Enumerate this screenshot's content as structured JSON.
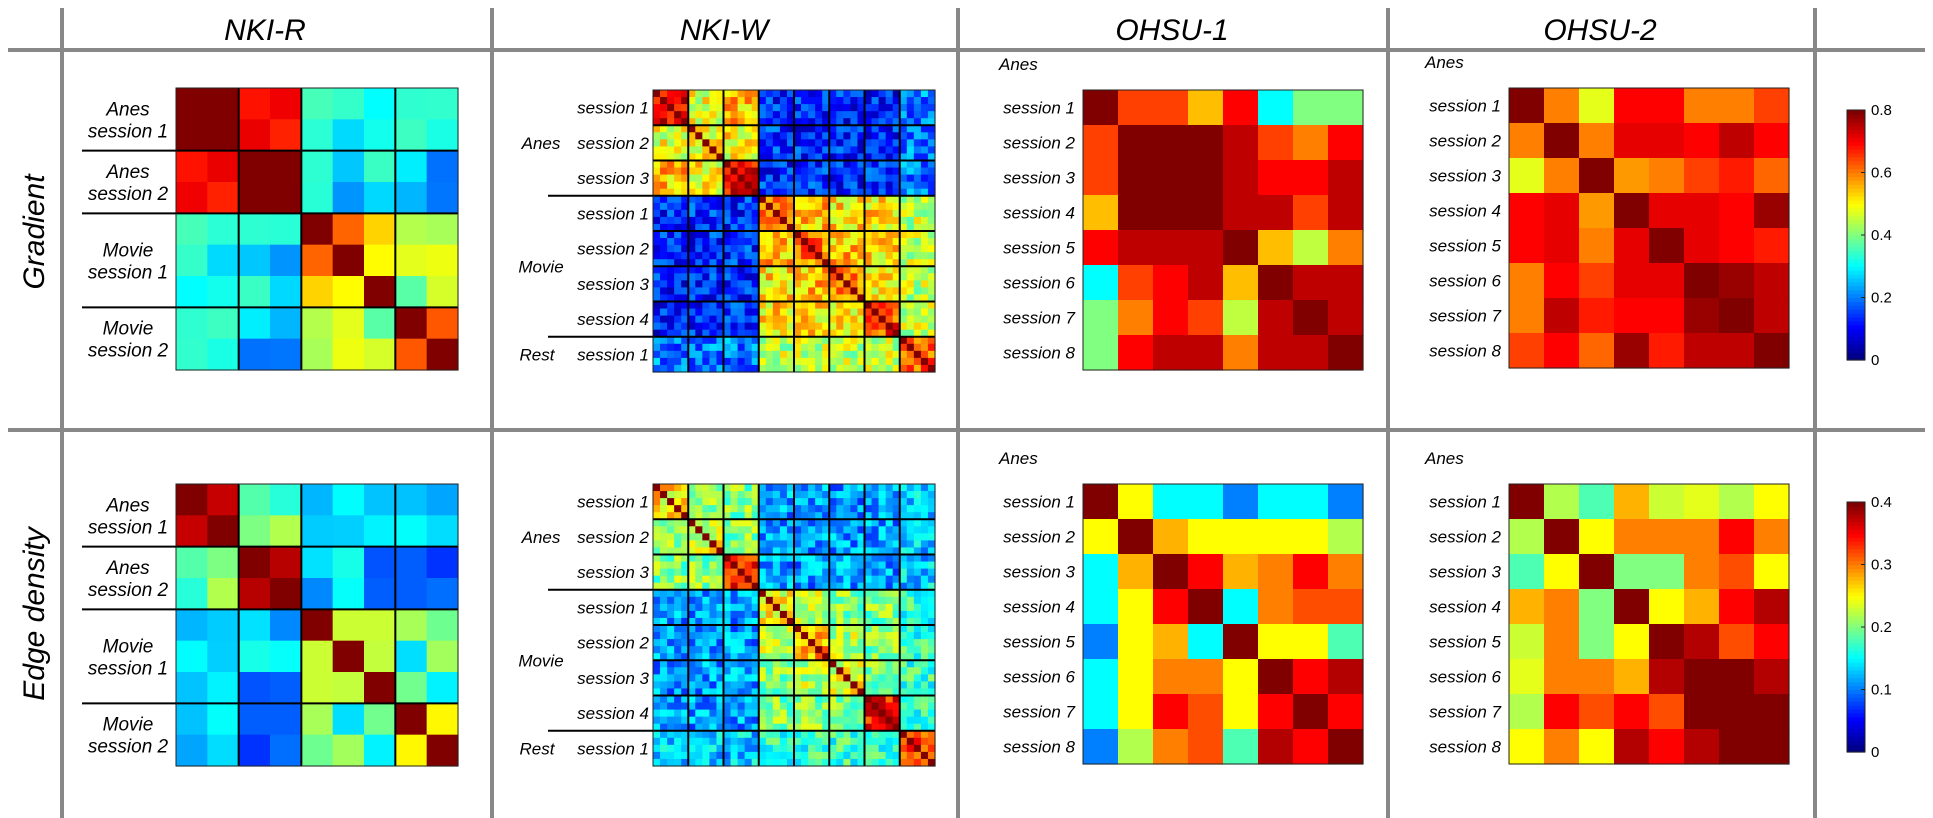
{
  "columns": [
    "NKI-R",
    "NKI-W",
    "OHSU-1",
    "OHSU-2"
  ],
  "rows": [
    "Gradient",
    "Edge density"
  ],
  "group_labels": {
    "anes": "Anes",
    "movie": "Movie",
    "rest": "Rest"
  },
  "nkir_labels": [
    [
      "Anes",
      "session 1"
    ],
    [
      "Anes",
      "session 2"
    ],
    [
      "Movie",
      "session 1"
    ],
    [
      "Movie",
      "session 2"
    ]
  ],
  "nkiw_session_labels": [
    "session 1",
    "session 2",
    "session 3",
    "session 1",
    "session 2",
    "session 3",
    "session 4",
    "session 1"
  ],
  "ohsu_session_labels": [
    "session 1",
    "session 2",
    "session 3",
    "session 4",
    "session 5",
    "session 6",
    "session 7",
    "session 8"
  ],
  "colormap": "jet",
  "chart_data": [
    {
      "type": "heatmap",
      "row": "Gradient",
      "column": "NKI-R",
      "groups": [
        2,
        2,
        3,
        2
      ],
      "block_means": [
        [
          0.8,
          0.63,
          0.28,
          0.28
        ],
        [
          0.63,
          0.72,
          0.27,
          0.26
        ],
        [
          0.28,
          0.27,
          0.55,
          0.42
        ],
        [
          0.28,
          0.26,
          0.42,
          0.58
        ]
      ]
    },
    {
      "type": "heatmap",
      "row": "Gradient",
      "column": "NKI-W",
      "groups": [
        5,
        5,
        5,
        5,
        5,
        5,
        5,
        5
      ],
      "block_means": [
        [
          0.7,
          0.48,
          0.55,
          0.12,
          0.12,
          0.12,
          0.12,
          0.2
        ],
        [
          0.48,
          0.5,
          0.5,
          0.13,
          0.13,
          0.13,
          0.13,
          0.2
        ],
        [
          0.55,
          0.5,
          0.72,
          0.13,
          0.13,
          0.13,
          0.13,
          0.2
        ],
        [
          0.12,
          0.13,
          0.13,
          0.58,
          0.55,
          0.52,
          0.52,
          0.45
        ],
        [
          0.12,
          0.13,
          0.13,
          0.55,
          0.6,
          0.55,
          0.52,
          0.45
        ],
        [
          0.12,
          0.13,
          0.13,
          0.52,
          0.55,
          0.58,
          0.52,
          0.45
        ],
        [
          0.12,
          0.13,
          0.13,
          0.52,
          0.52,
          0.52,
          0.65,
          0.45
        ],
        [
          0.2,
          0.2,
          0.2,
          0.45,
          0.45,
          0.45,
          0.45,
          0.62
        ]
      ]
    },
    {
      "type": "heatmap",
      "row": "Gradient",
      "column": "OHSU-1",
      "values": [
        [
          0.8,
          0.65,
          0.65,
          0.55,
          0.7,
          0.3,
          0.4,
          0.4
        ],
        [
          0.65,
          0.8,
          0.8,
          0.8,
          0.75,
          0.65,
          0.6,
          0.7
        ],
        [
          0.65,
          0.8,
          0.8,
          0.8,
          0.75,
          0.7,
          0.7,
          0.75
        ],
        [
          0.55,
          0.8,
          0.8,
          0.8,
          0.75,
          0.75,
          0.65,
          0.75
        ],
        [
          0.7,
          0.75,
          0.75,
          0.75,
          0.8,
          0.55,
          0.45,
          0.6
        ],
        [
          0.3,
          0.65,
          0.7,
          0.75,
          0.55,
          0.8,
          0.75,
          0.75
        ],
        [
          0.4,
          0.6,
          0.7,
          0.65,
          0.45,
          0.75,
          0.8,
          0.75
        ],
        [
          0.4,
          0.7,
          0.75,
          0.75,
          0.6,
          0.75,
          0.75,
          0.8
        ]
      ]
    },
    {
      "type": "heatmap",
      "row": "Gradient",
      "column": "OHSU-2",
      "values": [
        [
          0.8,
          0.6,
          0.48,
          0.7,
          0.7,
          0.6,
          0.6,
          0.65
        ],
        [
          0.6,
          0.8,
          0.6,
          0.72,
          0.72,
          0.7,
          0.75,
          0.7
        ],
        [
          0.48,
          0.6,
          0.8,
          0.58,
          0.6,
          0.65,
          0.68,
          0.62
        ],
        [
          0.7,
          0.72,
          0.58,
          0.8,
          0.72,
          0.72,
          0.7,
          0.78
        ],
        [
          0.7,
          0.72,
          0.6,
          0.72,
          0.8,
          0.72,
          0.7,
          0.68
        ],
        [
          0.6,
          0.7,
          0.65,
          0.72,
          0.72,
          0.8,
          0.78,
          0.75
        ],
        [
          0.6,
          0.75,
          0.68,
          0.7,
          0.7,
          0.78,
          0.8,
          0.75
        ],
        [
          0.65,
          0.7,
          0.62,
          0.78,
          0.68,
          0.75,
          0.75,
          0.8
        ]
      ]
    },
    {
      "type": "heatmap",
      "row": "Edge density",
      "column": "NKI-R",
      "groups": [
        2,
        2,
        3,
        2
      ],
      "block_means": [
        [
          0.36,
          0.2,
          0.12,
          0.11
        ],
        [
          0.2,
          0.34,
          0.12,
          0.11
        ],
        [
          0.12,
          0.12,
          0.24,
          0.18
        ],
        [
          0.11,
          0.11,
          0.18,
          0.22
        ]
      ]
    },
    {
      "type": "heatmap",
      "row": "Edge density",
      "column": "NKI-W",
      "groups": [
        5,
        5,
        5,
        5,
        5,
        5,
        5,
        5
      ],
      "block_means": [
        [
          0.26,
          0.2,
          0.2,
          0.11,
          0.11,
          0.11,
          0.11,
          0.13
        ],
        [
          0.2,
          0.24,
          0.2,
          0.11,
          0.11,
          0.11,
          0.11,
          0.13
        ],
        [
          0.2,
          0.2,
          0.34,
          0.11,
          0.11,
          0.11,
          0.11,
          0.13
        ],
        [
          0.11,
          0.11,
          0.11,
          0.25,
          0.23,
          0.2,
          0.2,
          0.17
        ],
        [
          0.11,
          0.11,
          0.11,
          0.23,
          0.28,
          0.22,
          0.2,
          0.17
        ],
        [
          0.11,
          0.11,
          0.11,
          0.2,
          0.22,
          0.24,
          0.2,
          0.17
        ],
        [
          0.11,
          0.11,
          0.11,
          0.2,
          0.2,
          0.2,
          0.34,
          0.17
        ],
        [
          0.13,
          0.13,
          0.13,
          0.17,
          0.17,
          0.17,
          0.17,
          0.32
        ]
      ]
    },
    {
      "type": "heatmap",
      "row": "Edge density",
      "column": "OHSU-1",
      "values": [
        [
          0.4,
          0.25,
          0.15,
          0.15,
          0.1,
          0.15,
          0.15,
          0.1
        ],
        [
          0.25,
          0.4,
          0.28,
          0.25,
          0.25,
          0.25,
          0.25,
          0.22
        ],
        [
          0.15,
          0.28,
          0.4,
          0.35,
          0.28,
          0.3,
          0.35,
          0.3
        ],
        [
          0.15,
          0.25,
          0.35,
          0.4,
          0.15,
          0.3,
          0.32,
          0.32
        ],
        [
          0.1,
          0.25,
          0.28,
          0.15,
          0.4,
          0.25,
          0.25,
          0.18
        ],
        [
          0.15,
          0.25,
          0.3,
          0.3,
          0.25,
          0.4,
          0.35,
          0.38
        ],
        [
          0.15,
          0.25,
          0.35,
          0.32,
          0.25,
          0.35,
          0.4,
          0.35
        ],
        [
          0.1,
          0.22,
          0.3,
          0.32,
          0.18,
          0.38,
          0.35,
          0.4
        ]
      ]
    },
    {
      "type": "heatmap",
      "row": "Edge density",
      "column": "OHSU-2",
      "values": [
        [
          0.4,
          0.22,
          0.18,
          0.28,
          0.23,
          0.24,
          0.22,
          0.25
        ],
        [
          0.22,
          0.4,
          0.25,
          0.3,
          0.3,
          0.3,
          0.35,
          0.3
        ],
        [
          0.18,
          0.25,
          0.4,
          0.2,
          0.2,
          0.3,
          0.32,
          0.25
        ],
        [
          0.28,
          0.3,
          0.2,
          0.4,
          0.25,
          0.28,
          0.35,
          0.38
        ],
        [
          0.23,
          0.3,
          0.2,
          0.25,
          0.4,
          0.38,
          0.32,
          0.35
        ],
        [
          0.24,
          0.3,
          0.3,
          0.28,
          0.38,
          0.4,
          0.4,
          0.38
        ],
        [
          0.22,
          0.35,
          0.32,
          0.35,
          0.32,
          0.4,
          0.4,
          0.4
        ],
        [
          0.25,
          0.3,
          0.25,
          0.38,
          0.35,
          0.38,
          0.4,
          0.4
        ]
      ]
    }
  ],
  "colorbars": [
    {
      "row": "Gradient",
      "range": [
        0,
        0.8
      ],
      "tick_labels": [
        "0",
        "0.2",
        "0.4",
        "0.6",
        "0.8"
      ]
    },
    {
      "row": "Edge density",
      "range": [
        0,
        0.4
      ],
      "tick_labels": [
        "0",
        "0.1",
        "0.2",
        "0.3",
        "0.4"
      ]
    }
  ]
}
